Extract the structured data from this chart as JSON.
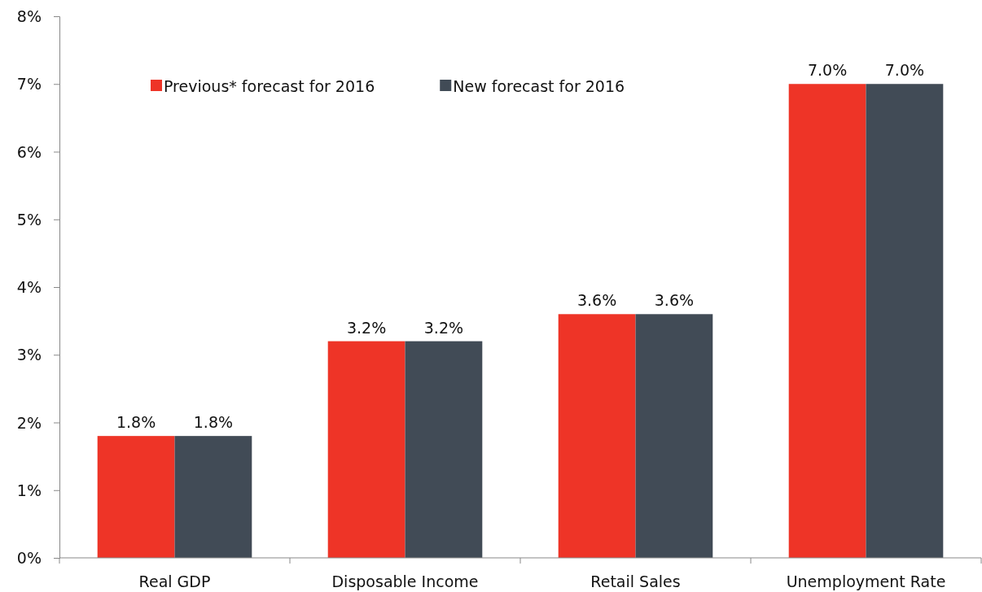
{
  "chart_data": {
    "type": "bar",
    "categories": [
      "Real GDP",
      "Disposable Income",
      "Retail Sales",
      "Unemployment Rate"
    ],
    "series": [
      {
        "name": "Previous* forecast for 2016",
        "color": "#ee3427",
        "values": [
          1.8,
          3.2,
          3.6,
          7.0
        ],
        "value_labels": [
          "1.8%",
          "3.2%",
          "3.6%",
          "7.0%"
        ]
      },
      {
        "name": "New forecast for 2016",
        "color": "#414b56",
        "values": [
          1.8,
          3.2,
          3.6,
          7.0
        ],
        "value_labels": [
          "1.8%",
          "3.2%",
          "3.6%",
          "7.0%"
        ]
      }
    ],
    "ylim": [
      0,
      8
    ],
    "yticks": [
      {
        "value": 0,
        "label": "0%"
      },
      {
        "value": 1,
        "label": "1%"
      },
      {
        "value": 2,
        "label": "2%"
      },
      {
        "value": 3,
        "label": "3%"
      },
      {
        "value": 4,
        "label": "4%"
      },
      {
        "value": 5,
        "label": "5%"
      },
      {
        "value": 6,
        "label": "6%"
      },
      {
        "value": 7,
        "label": "7%"
      },
      {
        "value": 8,
        "label": "8%"
      }
    ],
    "grid": false,
    "legend": "top"
  }
}
